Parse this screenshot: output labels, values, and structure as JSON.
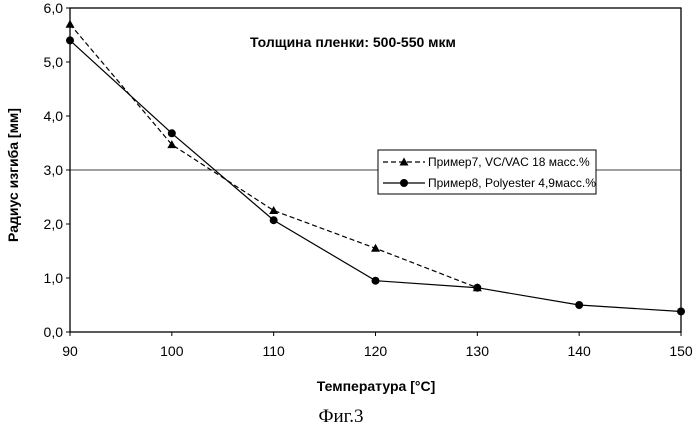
{
  "chart_data": {
    "type": "line",
    "title": "Толщина пленки:  500-550 мкм",
    "xlabel": "Температура  [°C]",
    "ylabel": "Радиус изгиба [мм]",
    "x": [
      90,
      100,
      110,
      120,
      130,
      140,
      150
    ],
    "xlim": [
      90,
      150
    ],
    "ylim": [
      0,
      6
    ],
    "x_ticks": [
      "90",
      "100",
      "110",
      "120",
      "130",
      "140",
      "150"
    ],
    "y_ticks": [
      "0,0",
      "1,0",
      "2,0",
      "3,0",
      "4,0",
      "5,0",
      "6,0"
    ],
    "reference_line_y": 3.0,
    "series": [
      {
        "name": "Пример7, VC/VAC 18 масс.%",
        "marker": "triangle",
        "style": "dashed",
        "x": [
          90,
          100,
          110,
          120,
          130
        ],
        "values": [
          5.7,
          3.47,
          2.25,
          1.55,
          0.82
        ]
      },
      {
        "name": "Пример8,  Polyester 4,9масс.%",
        "marker": "circle",
        "style": "solid",
        "x": [
          90,
          100,
          110,
          120,
          130,
          140,
          150
        ],
        "values": [
          5.4,
          3.68,
          2.07,
          0.95,
          0.82,
          0.5,
          0.38
        ]
      }
    ],
    "legend": "right-middle",
    "grid": false
  },
  "caption": "Фиг.3"
}
